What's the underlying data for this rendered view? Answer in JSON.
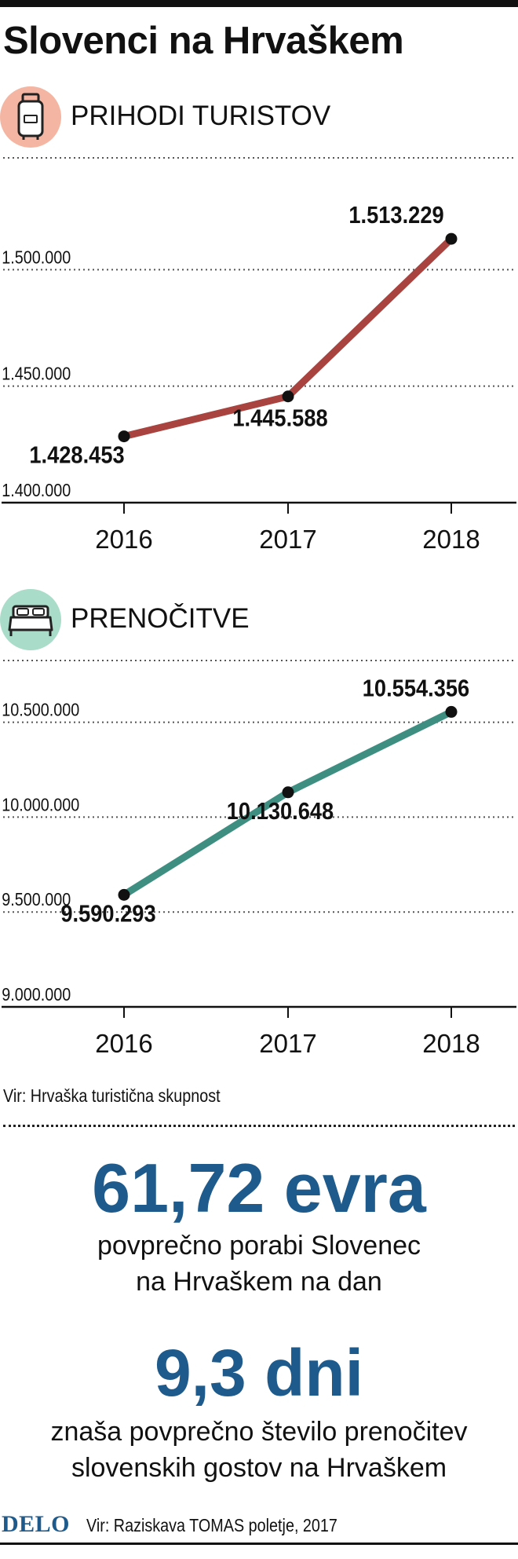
{
  "title": "Slovenci na Hrvaškem",
  "sections": [
    {
      "label": "PRIHODI TURISTOV",
      "icon": "suitcase-icon",
      "icon_bg": "#f4b6a2"
    },
    {
      "label": "PRENOČITVE",
      "icon": "bed-icon",
      "icon_bg": "#a9dcc9"
    }
  ],
  "chart_data": [
    {
      "type": "line",
      "title": "PRIHODI TURISTOV",
      "categories": [
        "2016",
        "2017",
        "2018"
      ],
      "values": [
        1428453,
        1445588,
        1513229
      ],
      "value_labels": [
        "1.428.453",
        "1.445.588",
        "1.513.229"
      ],
      "yticks": [
        1400000,
        1450000,
        1500000
      ],
      "ytick_labels": [
        "1.400.000",
        "1.450.000",
        "1.500.000"
      ],
      "ylim": [
        1400000,
        1550000
      ],
      "grid": "dotted horizontal",
      "color": "#a8433f"
    },
    {
      "type": "line",
      "title": "PRENOČITVE",
      "categories": [
        "2016",
        "2017",
        "2018"
      ],
      "values": [
        9590293,
        10130648,
        10554356
      ],
      "value_labels": [
        "9.590.293",
        "10.130.648",
        "10.554.356"
      ],
      "yticks": [
        9000000,
        9500000,
        10000000,
        10500000
      ],
      "ytick_labels": [
        "9.000.000",
        "9.500.000",
        "10.000.000",
        "10.500.000"
      ],
      "ylim": [
        9000000,
        10850000
      ],
      "grid": "dotted horizontal",
      "color": "#3e8f82"
    }
  ],
  "source1": "Vir: Hrvaška turistična skupnost",
  "stats": [
    {
      "value": "61,72 evra",
      "line1": "povprečno porabi Slovenec",
      "line2": "na Hrvaškem na dan"
    },
    {
      "value": "9,3 dni",
      "line1": "znaša povprečno število prenočitev",
      "line2": "slovenskih gostov na Hrvaškem"
    }
  ],
  "footer": {
    "logo": "DELO",
    "source": "Vir: Raziskava TOMAS poletje, 2017"
  },
  "colors": {
    "accent": "#1e5b8c",
    "line1": "#a8433f",
    "line2": "#3e8f82"
  }
}
